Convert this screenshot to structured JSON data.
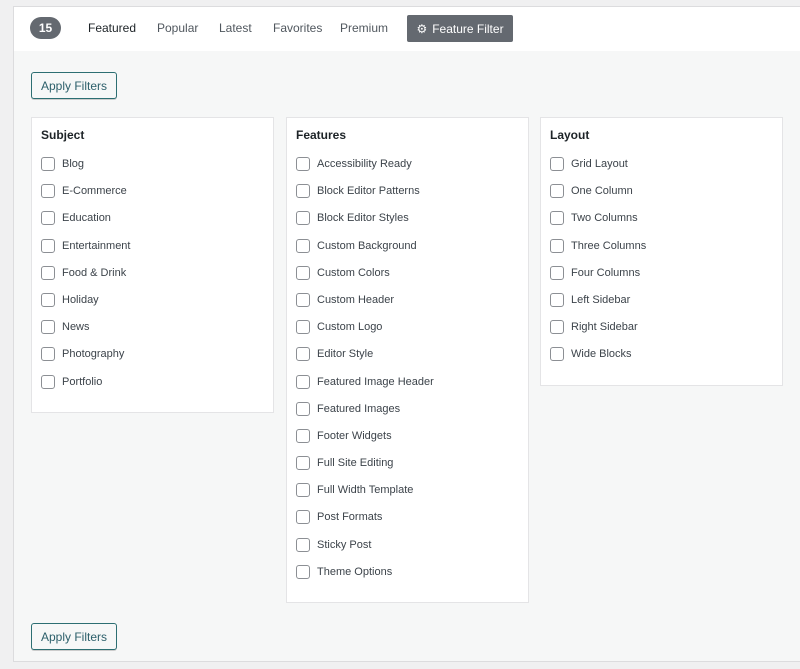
{
  "header": {
    "count": "15",
    "tabs": [
      "Featured",
      "Popular",
      "Latest",
      "Favorites",
      "Premium"
    ],
    "feature_filter": "Feature Filter"
  },
  "apply_label": "Apply Filters",
  "groups": [
    {
      "title": "Subject",
      "items": [
        "Blog",
        "E-Commerce",
        "Education",
        "Entertainment",
        "Food & Drink",
        "Holiday",
        "News",
        "Photography",
        "Portfolio"
      ]
    },
    {
      "title": "Features",
      "items": [
        "Accessibility Ready",
        "Block Editor Patterns",
        "Block Editor Styles",
        "Custom Background",
        "Custom Colors",
        "Custom Header",
        "Custom Logo",
        "Editor Style",
        "Featured Image Header",
        "Featured Images",
        "Footer Widgets",
        "Full Site Editing",
        "Full Width Template",
        "Post Formats",
        "Sticky Post",
        "Theme Options"
      ]
    },
    {
      "title": "Layout",
      "items": [
        "Grid Layout",
        "One Column",
        "Two Columns",
        "Three Columns",
        "Four Columns",
        "Left Sidebar",
        "Right Sidebar",
        "Wide Blocks"
      ]
    }
  ]
}
